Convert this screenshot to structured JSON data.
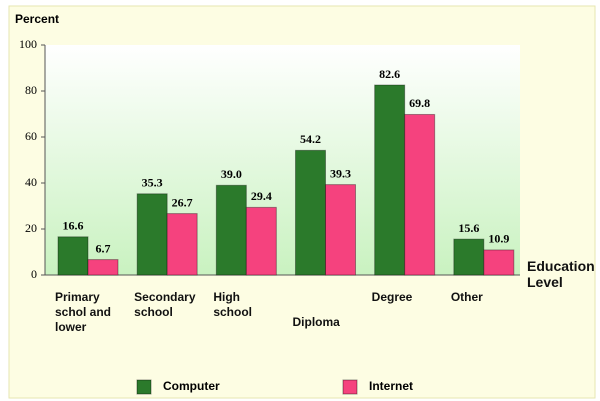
{
  "chart_data": {
    "type": "bar",
    "y_axis_label": "Percent",
    "x_axis_label": "Education Level",
    "categories": [
      "Primary schol and lower",
      "Secondary school",
      "High school",
      "Diploma",
      "Degree",
      "Other"
    ],
    "series": [
      {
        "name": "Computer",
        "color": "#2b7a2b",
        "values": [
          16.6,
          35.3,
          39.0,
          54.2,
          82.6,
          15.6
        ],
        "value_labels": [
          "16.6",
          "35.3",
          "39.0",
          "54.2",
          "82.6",
          "15.6"
        ]
      },
      {
        "name": "Internet",
        "color": "#f5427e",
        "values": [
          6.7,
          26.7,
          29.4,
          39.3,
          69.8,
          10.9
        ],
        "value_labels": [
          "6.7",
          "26.7",
          "29.4",
          "39.3",
          "69.8",
          "10.9"
        ]
      }
    ],
    "ylim": [
      0,
      100
    ],
    "yticks": [
      0,
      20,
      40,
      60,
      80,
      100
    ],
    "legend": "bottom"
  }
}
